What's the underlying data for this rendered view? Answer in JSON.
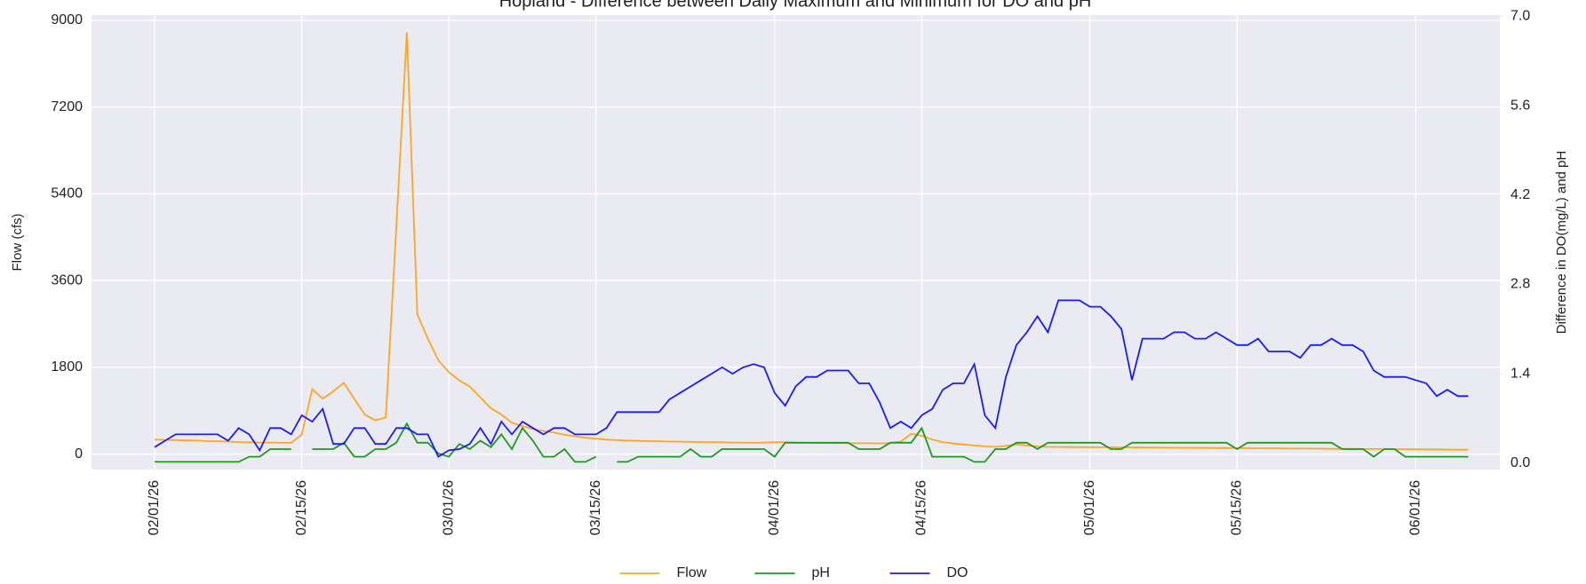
{
  "chart_data": {
    "type": "line",
    "title": "Hopland - Difference between Daily Maximum and Minimum for DO and pH",
    "ylabel": "Flow (cfs)",
    "y2label": "Difference in DO(mg/L) and pH",
    "x": [
      "02/01/26",
      "02/02/26",
      "02/03/26",
      "02/04/26",
      "02/05/26",
      "02/06/26",
      "02/07/26",
      "02/08/26",
      "02/09/26",
      "02/10/26",
      "02/11/26",
      "02/12/26",
      "02/13/26",
      "02/14/26",
      "02/15/26",
      "02/16/26",
      "02/17/26",
      "02/18/26",
      "02/19/26",
      "02/20/26",
      "02/21/26",
      "02/22/26",
      "02/23/26",
      "02/24/26",
      "02/25/26",
      "02/26/26",
      "02/27/26",
      "02/28/26",
      "03/01/26",
      "03/02/26",
      "03/03/26",
      "03/04/26",
      "03/05/26",
      "03/06/26",
      "03/07/26",
      "03/08/26",
      "03/09/26",
      "03/10/26",
      "03/11/26",
      "03/12/26",
      "03/13/26",
      "03/14/26",
      "03/15/26",
      "03/16/26",
      "03/17/26",
      "03/18/26",
      "03/19/26",
      "03/20/26",
      "03/21/26",
      "03/22/26",
      "03/23/26",
      "03/24/26",
      "03/25/26",
      "03/26/26",
      "03/27/26",
      "03/28/26",
      "03/29/26",
      "03/30/26",
      "03/31/26",
      "04/01/26",
      "04/02/26",
      "04/03/26",
      "04/04/26",
      "04/05/26",
      "04/06/26",
      "04/07/26",
      "04/08/26",
      "04/09/26",
      "04/10/26",
      "04/11/26",
      "04/12/26",
      "04/13/26",
      "04/14/26",
      "04/15/26",
      "04/16/26",
      "04/17/26",
      "04/18/26",
      "04/19/26",
      "04/20/26",
      "04/21/26",
      "04/22/26",
      "04/23/26",
      "04/24/26",
      "04/25/26",
      "04/26/26",
      "04/27/26",
      "04/28/26",
      "04/29/26",
      "04/30/26",
      "05/01/26",
      "05/02/26",
      "05/03/26",
      "05/04/26",
      "05/05/26",
      "05/06/26",
      "05/07/26",
      "05/08/26",
      "05/09/26",
      "05/10/26",
      "05/11/26",
      "05/12/26",
      "05/13/26",
      "05/14/26",
      "05/15/26",
      "05/16/26",
      "05/17/26",
      "05/18/26",
      "05/19/26",
      "05/20/26",
      "05/21/26",
      "05/22/26",
      "05/23/26",
      "05/24/26",
      "05/25/26",
      "05/26/26",
      "05/27/26",
      "05/28/26",
      "05/29/26",
      "05/30/26",
      "05/31/26",
      "06/01/26",
      "06/02/26",
      "06/03/26",
      "06/04/26",
      "06/05/26",
      "06/06/26"
    ],
    "series": [
      {
        "name": "Flow",
        "color": "#ffa520",
        "axis": "y",
        "values": [
          300,
          295,
          290,
          285,
          280,
          270,
          265,
          260,
          250,
          245,
          240,
          240,
          235,
          235,
          400,
          1350,
          1150,
          1300,
          1480,
          1150,
          820,
          700,
          760,
          4700,
          8750,
          2900,
          2400,
          1950,
          1700,
          1530,
          1400,
          1180,
          950,
          820,
          650,
          580,
          520,
          480,
          450,
          400,
          370,
          340,
          320,
          300,
          290,
          280,
          275,
          270,
          265,
          260,
          258,
          255,
          250,
          248,
          245,
          240,
          238,
          235,
          240,
          250,
          245,
          240,
          235,
          232,
          230,
          228,
          226,
          225,
          225,
          222,
          230,
          260,
          420,
          380,
          300,
          250,
          220,
          200,
          180,
          160,
          150,
          170,
          200,
          180,
          160,
          150,
          148,
          146,
          145,
          144,
          142,
          140,
          140,
          138,
          136,
          135,
          134,
          132,
          130,
          130,
          128,
          126,
          125,
          124,
          122,
          120,
          120,
          118,
          116,
          115,
          114,
          112,
          110,
          110,
          108,
          106,
          105,
          104,
          102,
          100,
          100,
          98,
          96,
          95,
          92,
          90
        ]
      },
      {
        "name": "pH",
        "color": "#1f9a1f",
        "axis": "y2",
        "values": [
          0.02,
          0.02,
          0.02,
          0.02,
          0.02,
          0.02,
          0.02,
          0.02,
          0.02,
          0.1,
          0.1,
          0.22,
          0.22,
          0.22,
          null,
          0.22,
          0.22,
          0.22,
          0.32,
          0.1,
          0.1,
          0.22,
          0.22,
          0.32,
          0.62,
          0.32,
          0.32,
          0.15,
          0.1,
          0.3,
          0.22,
          0.35,
          0.25,
          0.45,
          0.22,
          0.55,
          0.35,
          0.1,
          0.1,
          0.22,
          0.02,
          0.02,
          0.1,
          null,
          0.02,
          0.02,
          0.1,
          0.1,
          0.1,
          0.1,
          0.1,
          0.22,
          0.1,
          0.1,
          0.22,
          0.22,
          0.22,
          0.22,
          0.22,
          0.1,
          0.32,
          0.32,
          0.32,
          0.32,
          0.32,
          0.32,
          0.32,
          0.22,
          0.22,
          0.22,
          0.32,
          0.32,
          0.32,
          0.55,
          0.1,
          0.1,
          0.1,
          0.1,
          0.02,
          0.02,
          0.22,
          0.22,
          0.32,
          0.32,
          0.22,
          0.32,
          0.32,
          0.32,
          0.32,
          0.32,
          0.32,
          0.22,
          0.22,
          0.32,
          0.32,
          0.32,
          0.32,
          0.32,
          0.32,
          0.32,
          0.32,
          0.32,
          0.32,
          0.22,
          0.32,
          0.32,
          0.32,
          0.32,
          0.32,
          0.32,
          0.32,
          0.32,
          0.32,
          0.22,
          0.22,
          0.22,
          0.1,
          0.22,
          0.22,
          0.1,
          0.1,
          0.1,
          0.1,
          0.1,
          0.1,
          0.1
        ]
      },
      {
        "name": "DO",
        "color": "#1a1aff",
        "axis": "y2",
        "values": [
          0.25,
          0.35,
          0.45,
          0.45,
          0.45,
          0.45,
          0.45,
          0.35,
          0.55,
          0.45,
          0.2,
          0.55,
          0.55,
          0.45,
          0.75,
          0.65,
          0.85,
          0.3,
          0.3,
          0.55,
          0.55,
          0.3,
          0.3,
          0.55,
          0.55,
          0.45,
          0.45,
          0.1,
          0.2,
          0.22,
          0.3,
          0.55,
          0.3,
          0.65,
          0.45,
          0.65,
          0.55,
          0.45,
          0.55,
          0.55,
          0.45,
          0.45,
          0.45,
          0.55,
          0.8,
          0.8,
          0.8,
          0.8,
          0.8,
          1.0,
          1.1,
          1.2,
          1.3,
          1.4,
          1.5,
          1.4,
          1.5,
          1.55,
          1.5,
          1.1,
          0.9,
          1.2,
          1.35,
          1.35,
          1.45,
          1.45,
          1.45,
          1.25,
          1.25,
          0.95,
          0.55,
          0.65,
          0.55,
          0.75,
          0.85,
          1.15,
          1.25,
          1.25,
          1.55,
          0.75,
          0.55,
          1.35,
          1.85,
          2.05,
          2.3,
          2.05,
          2.55,
          2.55,
          2.55,
          2.45,
          2.45,
          2.3,
          2.1,
          1.3,
          1.95,
          1.95,
          1.95,
          2.05,
          2.05,
          1.95,
          1.95,
          2.05,
          1.95,
          1.85,
          1.85,
          1.95,
          1.75,
          1.75,
          1.75,
          1.65,
          1.85,
          1.85,
          1.95,
          1.85,
          1.85,
          1.75,
          1.45,
          1.35,
          1.35,
          1.35,
          1.3,
          1.25,
          1.05,
          1.15,
          1.05,
          1.05
        ]
      }
    ],
    "xlim": [
      "01/26/26",
      "06/09/26"
    ],
    "xticks": [
      "02/01/26",
      "02/15/26",
      "03/01/26",
      "03/15/26",
      "04/01/26",
      "04/15/26",
      "05/01/26",
      "05/15/26",
      "06/01/26"
    ],
    "ylim": [
      -320,
      9110
    ],
    "yticks": [
      0,
      1800,
      3600,
      5400,
      7200,
      9000
    ],
    "y2lim": [
      -0.1,
      7.02
    ],
    "y2ticks": [
      {
        "value": 0,
        "label": "0.0"
      },
      {
        "value": 1.4,
        "label": "1.4"
      },
      {
        "value": 2.8,
        "label": "2.8"
      },
      {
        "value": 4.2,
        "label": "4.2"
      },
      {
        "value": 5.6,
        "label": "5.6"
      },
      {
        "value": 7,
        "label": "7.0"
      }
    ],
    "grid": true,
    "legend": "below"
  }
}
